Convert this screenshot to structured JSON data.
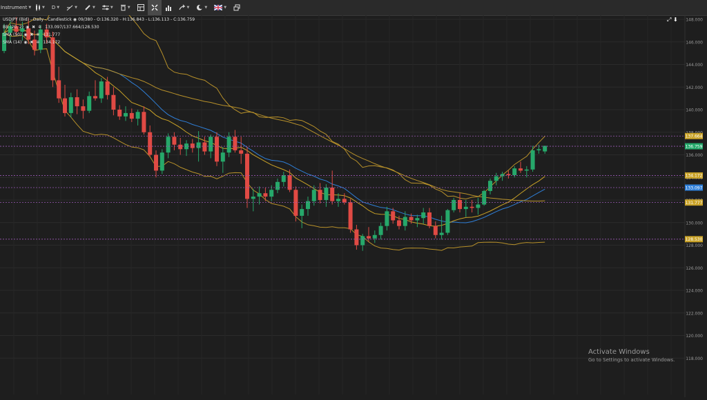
{
  "toolbar": {
    "instrument_label": "Instrument",
    "timeframe_label": "D",
    "items": [
      "candles-icon",
      "line-tool-icon",
      "pencil-icon",
      "fib-icon",
      "trash-icon",
      "layout-icon",
      "crosshair-icon",
      "bar-chart-icon",
      "share-icon",
      "cloud-icon",
      "flag-icon",
      "window-icon"
    ]
  },
  "legend": {
    "header": "USDJPY (Bid) - Daily - Candlestick",
    "ohlc": "09/380 - O:136.320 - H:136.843 - L:136.113 - C:136.759",
    "bb_name": "BB (20, 2)",
    "bb_values": "133.097/137.664/128.530",
    "sma50_name": "SMA (50)",
    "sma50_value": "131.777",
    "sma14_name": "SMA (14)",
    "sma14_value": "134.172"
  },
  "watermark": {
    "title": "Activate Windows",
    "subtitle": "Go to Settings to activate Windows."
  },
  "chart_data": {
    "type": "candlestick",
    "ylim": [
      116,
      148
    ],
    "y_ticks": [
      118,
      120,
      122,
      124,
      126,
      128,
      130,
      132,
      134,
      136,
      138,
      140,
      142,
      144,
      146,
      148
    ],
    "price_markers": [
      {
        "label": "137.664",
        "value": 137.664,
        "color": "#c9a227"
      },
      {
        "label": "136.759",
        "value": 136.759,
        "color": "#22a869"
      },
      {
        "label": "134.172",
        "value": 134.172,
        "color": "#c9a227"
      },
      {
        "label": "133.097",
        "value": 133.097,
        "color": "#2f7fd8"
      },
      {
        "label": "131.777",
        "value": 131.777,
        "color": "#c9a227"
      },
      {
        "label": "128.530",
        "value": 128.53,
        "color": "#c9a227"
      }
    ],
    "candles": [
      [
        145.2,
        147.6,
        145.0,
        146.8
      ],
      [
        146.8,
        147.9,
        146.0,
        147.4
      ],
      [
        147.4,
        148.2,
        146.6,
        146.9
      ],
      [
        146.9,
        147.8,
        146.1,
        147.2
      ],
      [
        147.2,
        148.1,
        145.8,
        146.2
      ],
      [
        146.2,
        147.0,
        144.8,
        145.3
      ],
      [
        145.3,
        147.5,
        145.0,
        147.1
      ],
      [
        147.1,
        147.6,
        145.9,
        146.4
      ],
      [
        146.4,
        146.9,
        142.0,
        142.6
      ],
      [
        142.6,
        143.8,
        140.6,
        141.0
      ],
      [
        141.0,
        142.2,
        139.4,
        139.7
      ],
      [
        139.7,
        141.5,
        139.3,
        141.1
      ],
      [
        141.1,
        141.8,
        139.6,
        140.3
      ],
      [
        140.3,
        140.9,
        139.2,
        139.9
      ],
      [
        139.9,
        141.6,
        139.7,
        141.2
      ],
      [
        141.2,
        142.6,
        140.8,
        141.0
      ],
      [
        141.0,
        142.8,
        140.6,
        142.5
      ],
      [
        142.5,
        142.9,
        140.9,
        141.3
      ],
      [
        141.3,
        142.0,
        139.5,
        140.0
      ],
      [
        140.0,
        140.4,
        139.1,
        139.4
      ],
      [
        139.4,
        140.3,
        139.0,
        139.7
      ],
      [
        139.7,
        140.1,
        138.9,
        139.2
      ],
      [
        139.2,
        140.0,
        138.6,
        139.8
      ],
      [
        139.8,
        140.3,
        137.8,
        138.0
      ],
      [
        138.0,
        138.6,
        135.8,
        136.0
      ],
      [
        136.0,
        136.4,
        134.0,
        134.6
      ],
      [
        134.6,
        136.5,
        134.3,
        136.2
      ],
      [
        136.2,
        137.9,
        135.7,
        137.6
      ],
      [
        137.6,
        138.0,
        136.4,
        136.9
      ],
      [
        136.9,
        137.5,
        136.0,
        136.5
      ],
      [
        136.5,
        137.3,
        135.9,
        137.0
      ],
      [
        137.0,
        137.4,
        136.2,
        136.6
      ],
      [
        136.6,
        138.1,
        135.4,
        137.1
      ],
      [
        137.1,
        137.6,
        136.0,
        136.3
      ],
      [
        136.3,
        137.8,
        135.7,
        137.6
      ],
      [
        137.6,
        138.0,
        135.0,
        135.4
      ],
      [
        135.4,
        136.7,
        134.4,
        136.2
      ],
      [
        136.2,
        138.0,
        135.8,
        137.6
      ],
      [
        137.6,
        138.2,
        136.2,
        136.4
      ],
      [
        136.4,
        137.6,
        135.2,
        136.1
      ],
      [
        136.1,
        136.7,
        131.3,
        132.1
      ],
      [
        132.1,
        133.0,
        131.0,
        132.3
      ],
      [
        132.3,
        133.2,
        131.6,
        132.6
      ],
      [
        132.6,
        133.1,
        131.9,
        132.3
      ],
      [
        132.3,
        133.3,
        131.9,
        132.9
      ],
      [
        132.9,
        133.9,
        132.6,
        133.6
      ],
      [
        133.6,
        134.5,
        133.2,
        134.2
      ],
      [
        134.2,
        134.7,
        132.7,
        132.9
      ],
      [
        132.9,
        133.2,
        130.1,
        130.6
      ],
      [
        130.6,
        131.6,
        129.5,
        131.2
      ],
      [
        131.2,
        132.3,
        130.6,
        131.9
      ],
      [
        131.9,
        133.3,
        131.5,
        132.9
      ],
      [
        132.9,
        133.5,
        131.7,
        132.0
      ],
      [
        132.0,
        133.4,
        131.4,
        133.1
      ],
      [
        133.1,
        134.6,
        131.6,
        131.9
      ],
      [
        131.9,
        132.6,
        131.4,
        132.1
      ],
      [
        132.1,
        132.6,
        131.6,
        131.8
      ],
      [
        131.8,
        132.1,
        129.1,
        129.4
      ],
      [
        129.4,
        129.8,
        127.6,
        128.0
      ],
      [
        128.0,
        129.0,
        127.5,
        128.8
      ],
      [
        128.8,
        129.6,
        128.3,
        128.6
      ],
      [
        128.6,
        129.3,
        128.2,
        128.9
      ],
      [
        128.9,
        130.0,
        128.5,
        129.7
      ],
      [
        129.7,
        131.4,
        129.3,
        131.0
      ],
      [
        131.0,
        131.3,
        129.9,
        130.2
      ],
      [
        130.2,
        130.6,
        129.4,
        129.7
      ],
      [
        129.7,
        131.0,
        129.3,
        130.5
      ],
      [
        130.5,
        130.8,
        129.9,
        130.2
      ],
      [
        130.2,
        130.7,
        129.6,
        130.4
      ],
      [
        130.4,
        131.3,
        129.9,
        130.9
      ],
      [
        130.9,
        131.3,
        129.5,
        129.7
      ],
      [
        129.7,
        130.1,
        128.6,
        128.9
      ],
      [
        128.9,
        130.6,
        128.5,
        129.1
      ],
      [
        129.1,
        131.2,
        128.9,
        131.1
      ],
      [
        131.1,
        132.2,
        130.9,
        132.0
      ],
      [
        132.0,
        132.6,
        130.9,
        131.2
      ],
      [
        131.2,
        132.0,
        130.5,
        131.4
      ],
      [
        131.4,
        132.0,
        130.9,
        131.3
      ],
      [
        131.3,
        132.2,
        130.7,
        131.6
      ],
      [
        131.6,
        132.9,
        131.5,
        132.8
      ],
      [
        132.8,
        133.9,
        132.5,
        133.7
      ],
      [
        133.7,
        134.4,
        133.3,
        134.1
      ],
      [
        134.1,
        134.5,
        133.7,
        134.3
      ],
      [
        134.3,
        134.6,
        133.9,
        134.2
      ],
      [
        134.2,
        135.0,
        134.0,
        134.8
      ],
      [
        134.8,
        135.4,
        134.4,
        134.6
      ],
      [
        134.6,
        135.0,
        134.0,
        134.7
      ],
      [
        134.7,
        136.8,
        134.5,
        136.4
      ],
      [
        136.4,
        136.9,
        136.1,
        136.5
      ],
      [
        136.3,
        136.8,
        136.1,
        136.8
      ]
    ]
  }
}
